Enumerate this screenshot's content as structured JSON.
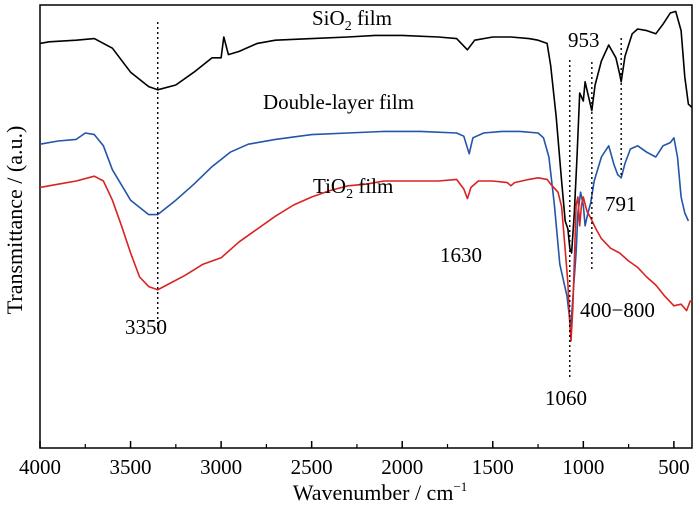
{
  "chart_data": {
    "type": "line",
    "xlabel": "Wavenumber / cm",
    "xlabel_sup": "−1",
    "ylabel": "Transmittance / (a.u.)",
    "xlim": [
      4000,
      400
    ],
    "x_reversed": true,
    "x_ticks": [
      4000,
      3500,
      3000,
      2500,
      2000,
      1500,
      1000,
      500
    ],
    "grid": false,
    "legend": "none",
    "series": [
      {
        "name_parts": [
          "SiO",
          "2",
          " film"
        ],
        "color": "#000000",
        "points": [
          [
            4000,
            0.24
          ],
          [
            3950,
            0.23
          ],
          [
            3800,
            0.22
          ],
          [
            3700,
            0.21
          ],
          [
            3600,
            0.27
          ],
          [
            3500,
            0.42
          ],
          [
            3400,
            0.51
          ],
          [
            3350,
            0.53
          ],
          [
            3250,
            0.5
          ],
          [
            3150,
            0.42
          ],
          [
            3050,
            0.33
          ],
          [
            3000,
            0.33
          ],
          [
            2985,
            0.2
          ],
          [
            2960,
            0.31
          ],
          [
            2900,
            0.29
          ],
          [
            2800,
            0.24
          ],
          [
            2700,
            0.22
          ],
          [
            2500,
            0.21
          ],
          [
            2300,
            0.2
          ],
          [
            2150,
            0.19
          ],
          [
            2000,
            0.19
          ],
          [
            1800,
            0.2
          ],
          [
            1700,
            0.21
          ],
          [
            1640,
            0.28
          ],
          [
            1600,
            0.22
          ],
          [
            1500,
            0.2
          ],
          [
            1400,
            0.2
          ],
          [
            1300,
            0.21
          ],
          [
            1250,
            0.22
          ],
          [
            1200,
            0.24
          ],
          [
            1180,
            0.38
          ],
          [
            1150,
            0.7
          ],
          [
            1120,
            1.1
          ],
          [
            1100,
            1.35
          ],
          [
            1085,
            1.4
          ],
          [
            1075,
            1.52
          ],
          [
            1065,
            1.55
          ],
          [
            1050,
            1.3
          ],
          [
            1035,
            0.95
          ],
          [
            1020,
            0.55
          ],
          [
            1000,
            0.6
          ],
          [
            990,
            0.48
          ],
          [
            970,
            0.58
          ],
          [
            953,
            0.66
          ],
          [
            935,
            0.5
          ],
          [
            900,
            0.35
          ],
          [
            860,
            0.25
          ],
          [
            820,
            0.33
          ],
          [
            800,
            0.43
          ],
          [
            791,
            0.48
          ],
          [
            770,
            0.32
          ],
          [
            730,
            0.18
          ],
          [
            700,
            0.15
          ],
          [
            650,
            0.16
          ],
          [
            600,
            0.18
          ],
          [
            560,
            0.12
          ],
          [
            520,
            0.05
          ],
          [
            490,
            0.04
          ],
          [
            460,
            0.16
          ],
          [
            440,
            0.45
          ],
          [
            420,
            0.62
          ],
          [
            400,
            0.64
          ]
        ]
      },
      {
        "name": "Double-layer film",
        "color": "#2355a8",
        "points": [
          [
            4000,
            0.87
          ],
          [
            3900,
            0.85
          ],
          [
            3800,
            0.84
          ],
          [
            3750,
            0.8
          ],
          [
            3700,
            0.81
          ],
          [
            3650,
            0.88
          ],
          [
            3600,
            1.03
          ],
          [
            3500,
            1.22
          ],
          [
            3400,
            1.31
          ],
          [
            3350,
            1.31
          ],
          [
            3250,
            1.22
          ],
          [
            3150,
            1.12
          ],
          [
            3050,
            1.01
          ],
          [
            2950,
            0.92
          ],
          [
            2850,
            0.87
          ],
          [
            2700,
            0.84
          ],
          [
            2500,
            0.81
          ],
          [
            2300,
            0.8
          ],
          [
            2100,
            0.79
          ],
          [
            1900,
            0.79
          ],
          [
            1700,
            0.8
          ],
          [
            1660,
            0.82
          ],
          [
            1630,
            0.93
          ],
          [
            1610,
            0.83
          ],
          [
            1550,
            0.8
          ],
          [
            1450,
            0.79
          ],
          [
            1350,
            0.79
          ],
          [
            1250,
            0.8
          ],
          [
            1220,
            0.83
          ],
          [
            1190,
            0.95
          ],
          [
            1160,
            1.25
          ],
          [
            1130,
            1.62
          ],
          [
            1110,
            1.72
          ],
          [
            1090,
            1.82
          ],
          [
            1075,
            1.97
          ],
          [
            1068,
            2.0
          ],
          [
            1055,
            1.78
          ],
          [
            1040,
            1.55
          ],
          [
            1030,
            1.3
          ],
          [
            1015,
            1.17
          ],
          [
            1000,
            1.25
          ],
          [
            990,
            1.38
          ],
          [
            975,
            1.3
          ],
          [
            960,
            1.24
          ],
          [
            940,
            1.1
          ],
          [
            900,
            0.95
          ],
          [
            860,
            0.88
          ],
          [
            830,
            1.0
          ],
          [
            810,
            1.06
          ],
          [
            791,
            1.08
          ],
          [
            770,
            0.99
          ],
          [
            740,
            0.9
          ],
          [
            700,
            0.88
          ],
          [
            650,
            0.92
          ],
          [
            600,
            0.95
          ],
          [
            560,
            0.88
          ],
          [
            520,
            0.86
          ],
          [
            500,
            0.83
          ],
          [
            480,
            0.95
          ],
          [
            460,
            1.2
          ],
          [
            440,
            1.3
          ],
          [
            420,
            1.35
          ]
        ]
      },
      {
        "name_parts": [
          "TiO",
          "2",
          " film"
        ],
        "color": "#d92323",
        "points": [
          [
            4000,
            1.14
          ],
          [
            3900,
            1.12
          ],
          [
            3800,
            1.1
          ],
          [
            3700,
            1.07
          ],
          [
            3650,
            1.1
          ],
          [
            3600,
            1.22
          ],
          [
            3550,
            1.38
          ],
          [
            3500,
            1.55
          ],
          [
            3450,
            1.7
          ],
          [
            3400,
            1.76
          ],
          [
            3350,
            1.78
          ],
          [
            3300,
            1.75
          ],
          [
            3200,
            1.69
          ],
          [
            3100,
            1.62
          ],
          [
            3000,
            1.58
          ],
          [
            2900,
            1.48
          ],
          [
            2800,
            1.4
          ],
          [
            2700,
            1.32
          ],
          [
            2600,
            1.25
          ],
          [
            2500,
            1.2
          ],
          [
            2400,
            1.16
          ],
          [
            2300,
            1.13
          ],
          [
            2200,
            1.12
          ],
          [
            2100,
            1.1
          ],
          [
            2000,
            1.1
          ],
          [
            1900,
            1.1
          ],
          [
            1800,
            1.1
          ],
          [
            1700,
            1.09
          ],
          [
            1660,
            1.15
          ],
          [
            1640,
            1.21
          ],
          [
            1620,
            1.14
          ],
          [
            1580,
            1.1
          ],
          [
            1500,
            1.1
          ],
          [
            1420,
            1.11
          ],
          [
            1400,
            1.13
          ],
          [
            1380,
            1.11
          ],
          [
            1300,
            1.09
          ],
          [
            1250,
            1.08
          ],
          [
            1200,
            1.09
          ],
          [
            1180,
            1.12
          ],
          [
            1140,
            1.17
          ],
          [
            1120,
            1.26
          ],
          [
            1100,
            1.53
          ],
          [
            1085,
            1.74
          ],
          [
            1075,
            1.99
          ],
          [
            1068,
            2.1
          ],
          [
            1058,
            1.9
          ],
          [
            1048,
            1.55
          ],
          [
            1040,
            1.25
          ],
          [
            1030,
            1.2
          ],
          [
            1020,
            1.38
          ],
          [
            1010,
            1.25
          ],
          [
            1000,
            1.2
          ],
          [
            980,
            1.29
          ],
          [
            960,
            1.33
          ],
          [
            930,
            1.4
          ],
          [
            900,
            1.46
          ],
          [
            850,
            1.52
          ],
          [
            800,
            1.55
          ],
          [
            750,
            1.6
          ],
          [
            700,
            1.64
          ],
          [
            650,
            1.7
          ],
          [
            600,
            1.75
          ],
          [
            550,
            1.82
          ],
          [
            500,
            1.88
          ],
          [
            460,
            1.87
          ],
          [
            430,
            1.91
          ],
          [
            410,
            1.85
          ],
          [
            400,
            1.85
          ]
        ]
      }
    ],
    "annotations": {
      "peak_3350": "3350",
      "peak_1630": "1630",
      "peak_1060": "1060",
      "peak_953": "953",
      "peak_791": "791",
      "range_400_800": "400−800"
    }
  }
}
